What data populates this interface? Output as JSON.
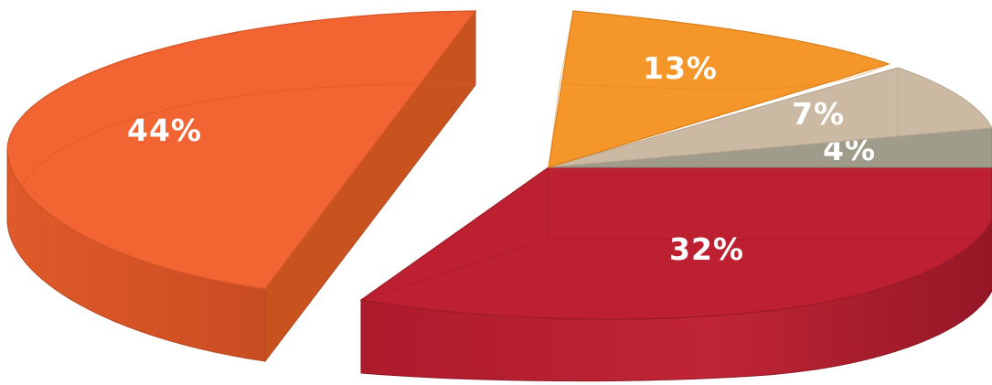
{
  "chart_data": {
    "type": "pie",
    "style": "3d-exploded",
    "slices": [
      {
        "label": "44%",
        "value": 44,
        "color": "#f26431",
        "exploded": true
      },
      {
        "label": "13%",
        "value": 13,
        "color": "#f5962a",
        "exploded": false
      },
      {
        "label": "7%",
        "value": 7,
        "color": "#cbb9a3",
        "exploded": false
      },
      {
        "label": "4%",
        "value": 4,
        "color": "#a09c8b",
        "exploded": false
      },
      {
        "label": "32%",
        "value": 32,
        "color": "#bd2031",
        "exploded": false
      }
    ],
    "title": "",
    "legend": "none"
  }
}
